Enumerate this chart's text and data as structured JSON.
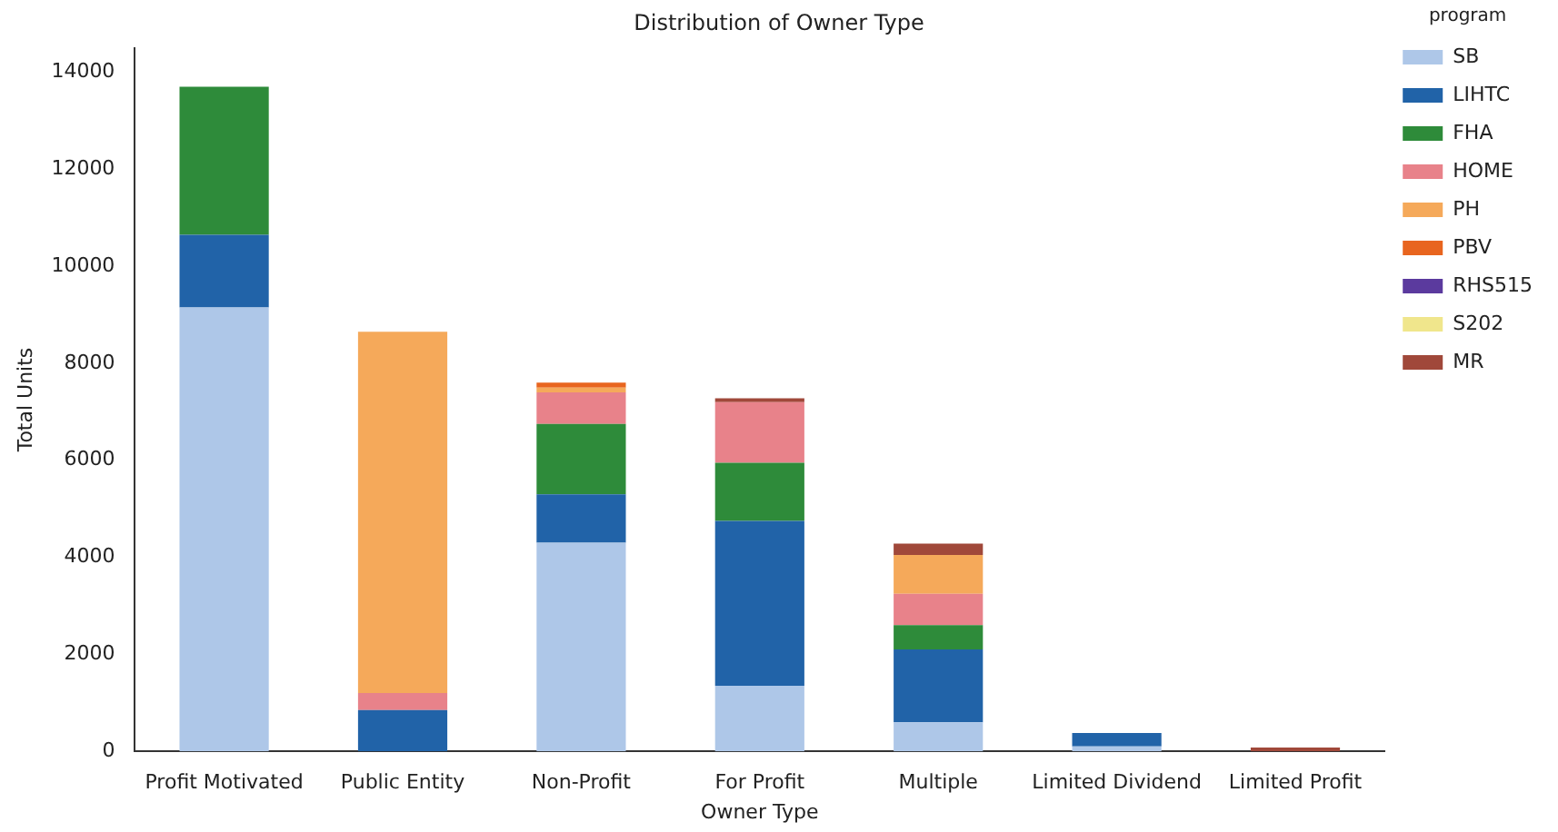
{
  "chart_data": {
    "type": "bar",
    "title": "Distribution of Owner Type",
    "xlabel": "Owner Type",
    "ylabel": "Total Units",
    "legend_title": "program",
    "stacked": true,
    "categories": [
      "Profit Motivated",
      "Public Entity",
      "Non-Profit",
      "For Profit",
      "Multiple",
      "Limited Dividend",
      "Limited Profit"
    ],
    "series": [
      {
        "name": "SB",
        "color": "#aec7e8",
        "values": [
          9150,
          0,
          4300,
          1350,
          600,
          100,
          0
        ]
      },
      {
        "name": "LIHTC",
        "color": "#2163a8",
        "values": [
          1500,
          850,
          1000,
          3400,
          1500,
          280,
          0
        ]
      },
      {
        "name": "FHA",
        "color": "#2e8b3a",
        "values": [
          3050,
          0,
          1450,
          1200,
          500,
          0,
          0
        ]
      },
      {
        "name": "HOME",
        "color": "#e8828a",
        "values": [
          0,
          350,
          650,
          1250,
          650,
          0,
          0
        ]
      },
      {
        "name": "PH",
        "color": "#f5a95a",
        "values": [
          0,
          7450,
          100,
          0,
          800,
          0,
          0
        ]
      },
      {
        "name": "PBV",
        "color": "#e8651f",
        "values": [
          0,
          0,
          100,
          0,
          0,
          0,
          0
        ]
      },
      {
        "name": "RHS515",
        "color": "#5b3a9e",
        "values": [
          0,
          0,
          0,
          0,
          0,
          0,
          0
        ]
      },
      {
        "name": "S202",
        "color": "#f0e68c",
        "values": [
          0,
          0,
          0,
          0,
          0,
          0,
          0
        ]
      },
      {
        "name": "MR",
        "color": "#a0483a",
        "values": [
          0,
          0,
          0,
          80,
          230,
          0,
          80
        ]
      }
    ],
    "ylim": [
      0,
      14500
    ],
    "yticks": [
      0,
      2000,
      4000,
      6000,
      8000,
      10000,
      12000,
      14000
    ],
    "grid": false,
    "legend": "top right"
  }
}
